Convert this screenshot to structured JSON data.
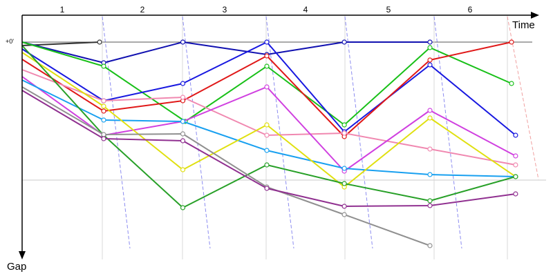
{
  "chart_data": {
    "type": "line",
    "title": "",
    "xlabel": "Time",
    "ylabel": "Gap",
    "zero_label": "+0'",
    "lap_labels": [
      "1",
      "2",
      "3",
      "4",
      "5",
      "6"
    ],
    "colors": {
      "axis": "#000000",
      "grid": "#c8c8c8",
      "lap_line": "#8c8cf0",
      "lap_line_final": "#f0a0a0",
      "top_line": "#555555"
    },
    "series": [
      {
        "color": "#333333",
        "points": [
          [
            0,
            0.05
          ],
          [
            0.95,
            0.0
          ]
        ]
      },
      {
        "color": "#1010b0",
        "points": [
          [
            0,
            0.0
          ],
          [
            1.0,
            0.3
          ],
          [
            1.97,
            0.0
          ],
          [
            3.0,
            0.18
          ],
          [
            3.95,
            0.0
          ],
          [
            5.0,
            0.0
          ]
        ]
      },
      {
        "color": "#18c018",
        "points": [
          [
            0,
            0.0
          ],
          [
            1.0,
            0.35
          ],
          [
            2.0,
            1.15
          ],
          [
            3.0,
            0.35
          ],
          [
            3.95,
            1.2
          ],
          [
            5.0,
            0.08
          ],
          [
            6.0,
            0.6
          ]
        ]
      },
      {
        "color": "#1818e0",
        "points": [
          [
            0,
            0.1
          ],
          [
            1.0,
            0.85
          ],
          [
            1.97,
            0.6
          ],
          [
            3.0,
            0.0
          ],
          [
            3.95,
            1.3
          ],
          [
            5.0,
            0.33
          ],
          [
            6.05,
            1.35
          ]
        ]
      },
      {
        "color": "#e01818",
        "points": [
          [
            0,
            0.25
          ],
          [
            1.0,
            1.0
          ],
          [
            1.97,
            0.85
          ],
          [
            3.0,
            0.2
          ],
          [
            3.95,
            1.37
          ],
          [
            5.0,
            0.26
          ],
          [
            6.0,
            0.0
          ]
        ]
      },
      {
        "color": "#f088b0",
        "points": [
          [
            0,
            0.4
          ],
          [
            1.0,
            0.85
          ],
          [
            1.97,
            0.8
          ],
          [
            3.0,
            1.35
          ],
          [
            3.95,
            1.32
          ],
          [
            5.0,
            1.55
          ],
          [
            6.05,
            1.78
          ]
        ]
      },
      {
        "color": "#d040e0",
        "points": [
          [
            0,
            0.5
          ],
          [
            1.0,
            1.35
          ],
          [
            1.97,
            1.15
          ],
          [
            3.0,
            0.65
          ],
          [
            3.95,
            1.87
          ],
          [
            5.0,
            0.99
          ],
          [
            6.05,
            1.65
          ]
        ]
      },
      {
        "color": "#18a0f0",
        "points": [
          [
            0,
            0.55
          ],
          [
            1.0,
            1.13
          ],
          [
            1.97,
            1.15
          ],
          [
            3.0,
            1.57
          ],
          [
            3.95,
            1.83
          ],
          [
            5.0,
            1.92
          ],
          [
            6.05,
            1.95
          ]
        ]
      },
      {
        "color": "#e0e010",
        "points": [
          [
            0,
            0.15
          ],
          [
            1.0,
            0.93
          ],
          [
            1.97,
            1.85
          ],
          [
            3.0,
            1.2
          ],
          [
            3.95,
            2.1
          ],
          [
            5.0,
            1.1
          ],
          [
            6.05,
            1.95
          ]
        ]
      },
      {
        "color": "#28a028",
        "points": [
          [
            0,
            0.05
          ],
          [
            1.0,
            1.35
          ],
          [
            1.97,
            2.4
          ],
          [
            3.0,
            1.78
          ],
          [
            3.95,
            2.05
          ],
          [
            5.0,
            2.3
          ],
          [
            6.05,
            1.95
          ]
        ]
      },
      {
        "color": "#909090",
        "points": [
          [
            0,
            0.65
          ],
          [
            1.0,
            1.34
          ],
          [
            1.97,
            1.33
          ],
          [
            3.0,
            2.1
          ],
          [
            3.95,
            2.5
          ],
          [
            5.0,
            2.95
          ]
        ]
      },
      {
        "color": "#903090",
        "points": [
          [
            0,
            0.7
          ],
          [
            1.0,
            1.4
          ],
          [
            1.97,
            1.43
          ],
          [
            3.0,
            2.12
          ],
          [
            3.95,
            2.38
          ],
          [
            5.0,
            2.37
          ],
          [
            6.05,
            2.2
          ]
        ]
      }
    ]
  }
}
